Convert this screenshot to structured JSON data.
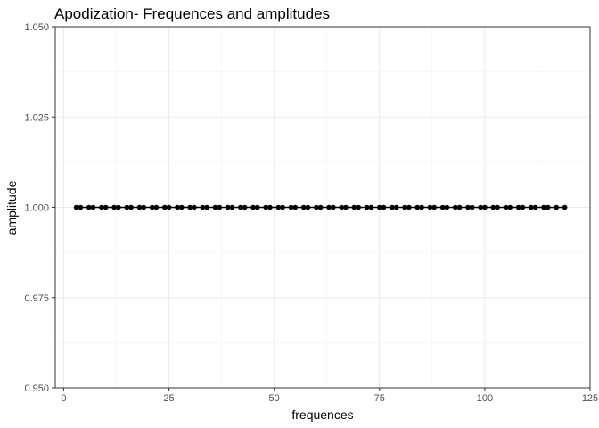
{
  "chart_data": {
    "type": "line",
    "title": "Apodization- Frequences and amplitudes",
    "xlabel": "frequences",
    "ylabel": "amplitude",
    "xlim": [
      -2,
      125
    ],
    "ylim": [
      0.95,
      1.05
    ],
    "x_ticks": [
      0,
      25,
      50,
      75,
      100,
      125
    ],
    "y_ticks": [
      0.95,
      0.975,
      1.0,
      1.025,
      1.05
    ],
    "x_tick_labels": [
      "0",
      "25",
      "50",
      "75",
      "100",
      "125"
    ],
    "y_tick_labels": [
      "0.950",
      "0.975",
      "1.000",
      "1.025",
      "1.050"
    ],
    "grid": true,
    "series": [
      {
        "x": [
          3,
          4,
          6,
          7,
          9,
          10,
          12,
          13,
          15,
          16,
          18,
          19,
          21,
          22,
          24,
          25,
          27,
          28,
          30,
          31,
          33,
          34,
          36,
          37,
          39,
          40,
          42,
          43,
          45,
          46,
          48,
          49,
          51,
          52,
          54,
          55,
          57,
          58,
          60,
          61,
          63,
          64,
          66,
          67,
          69,
          70,
          72,
          73,
          75,
          76,
          78,
          79,
          81,
          82,
          84,
          85,
          87,
          88,
          90,
          91,
          93,
          94,
          96,
          97,
          99,
          100,
          102,
          103,
          105,
          106,
          108,
          109,
          111,
          112,
          114,
          115,
          117,
          119
        ],
        "y": [
          1,
          1,
          1,
          1,
          1,
          1,
          1,
          1,
          1,
          1,
          1,
          1,
          1,
          1,
          1,
          1,
          1,
          1,
          1,
          1,
          1,
          1,
          1,
          1,
          1,
          1,
          1,
          1,
          1,
          1,
          1,
          1,
          1,
          1,
          1,
          1,
          1,
          1,
          1,
          1,
          1,
          1,
          1,
          1,
          1,
          1,
          1,
          1,
          1,
          1,
          1,
          1,
          1,
          1,
          1,
          1,
          1,
          1,
          1,
          1,
          1,
          1,
          1,
          1,
          1,
          1,
          1,
          1,
          1,
          1,
          1,
          1,
          1,
          1,
          1,
          1,
          1,
          1
        ]
      }
    ],
    "colors": {
      "series": "#000000",
      "grid": "#ebebeb",
      "border": "#333333"
    }
  }
}
